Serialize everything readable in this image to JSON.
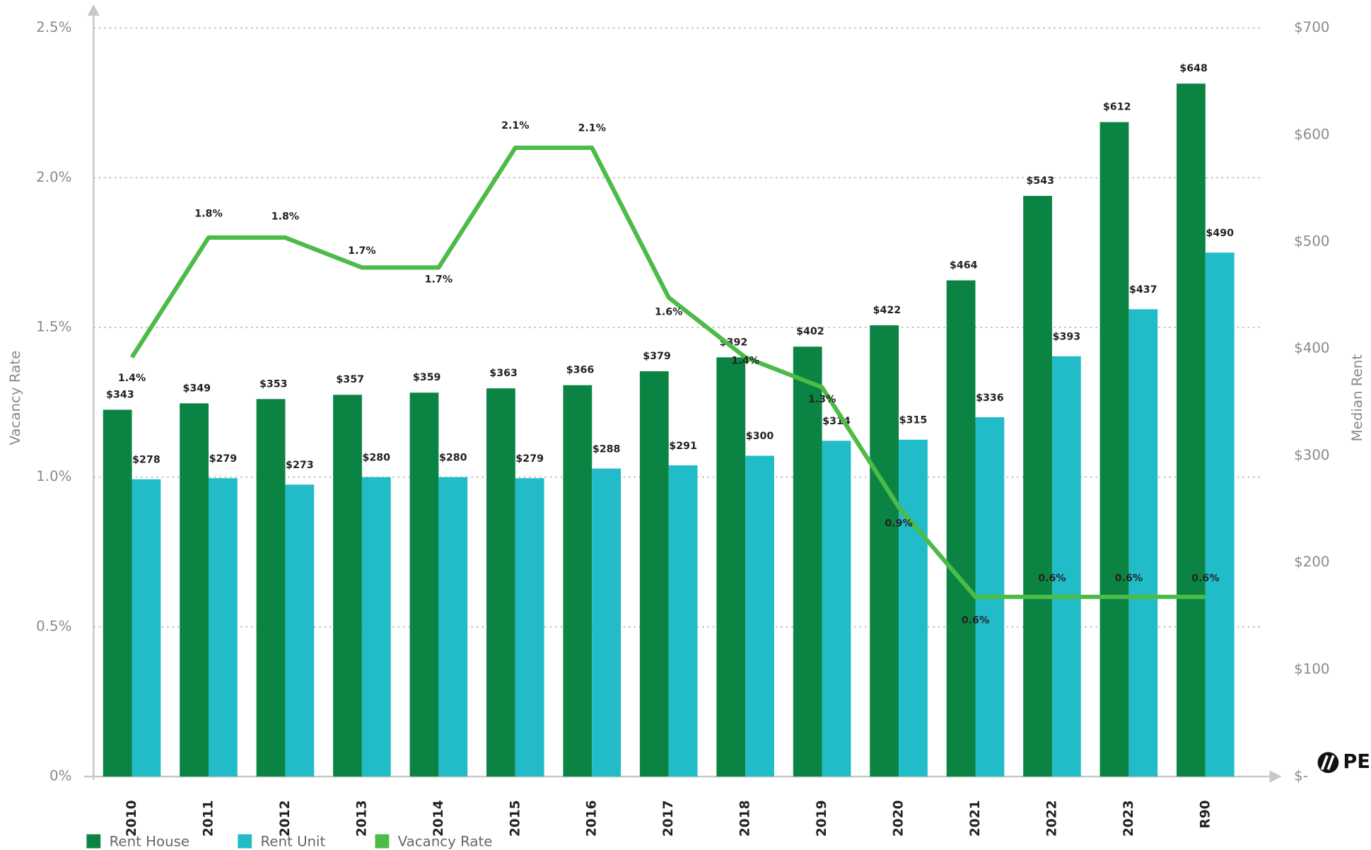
{
  "chart_data": {
    "type": "bar",
    "y_label": "Vacancy Rate",
    "y2_label": "Median Rent",
    "categories": [
      "2010",
      "2011",
      "2012",
      "2013",
      "2014",
      "2015",
      "2016",
      "2017",
      "2018",
      "2019",
      "2020",
      "2021",
      "2022",
      "2023",
      "R90"
    ],
    "series": [
      {
        "name": "Rent House",
        "type": "bar",
        "axis": "y2",
        "color": "#0b8443",
        "values": [
          343,
          349,
          353,
          357,
          359,
          363,
          366,
          379,
          392,
          402,
          422,
          464,
          543,
          612,
          648
        ],
        "value_labels": [
          "$343",
          "$349",
          "$353",
          "$357",
          "$359",
          "$363",
          "$366",
          "$379",
          "$392",
          "$402",
          "$422",
          "$464",
          "$543",
          "$612",
          "$648"
        ]
      },
      {
        "name": "Rent Unit",
        "type": "bar",
        "axis": "y2",
        "color": "#22bcc8",
        "values": [
          278,
          279,
          273,
          280,
          280,
          279,
          288,
          291,
          300,
          314,
          315,
          336,
          393,
          437,
          490
        ],
        "value_labels": [
          "$278",
          "$279",
          "$273",
          "$280",
          "$280",
          "$279",
          "$288",
          "$291",
          "$300",
          "$314",
          "$315",
          "$336",
          "$393",
          "$437",
          "$490"
        ]
      },
      {
        "name": "Vacancy Rate",
        "type": "line",
        "color": "#4cbb47",
        "values": [
          1.4,
          1.8,
          1.8,
          1.7,
          1.7,
          2.1,
          2.1,
          1.6,
          1.4,
          1.3,
          0.9,
          0.6,
          0.6,
          0.6,
          0.6
        ],
        "value_labels": [
          "1.4%",
          "1.8%",
          "1.8%",
          "1.7%",
          "1.7%",
          "2.1%",
          "2.1%",
          "1.6%",
          "1.4%",
          "1.3%",
          "0.9%",
          "0.6%",
          "0.6%",
          "0.6%",
          "0.6%"
        ]
      }
    ],
    "ylim": [
      0,
      2.5
    ],
    "yticks": [
      {
        "value": 0,
        "label": "0%"
      },
      {
        "value": 0.5,
        "label": "0.5%"
      },
      {
        "value": 1,
        "label": "1.0%"
      },
      {
        "value": 1.5,
        "label": "1.5%"
      },
      {
        "value": 2,
        "label": "2.0%"
      },
      {
        "value": 2.5,
        "label": "2.5%"
      }
    ],
    "y2lim": [
      0,
      700
    ],
    "y2ticks": [
      {
        "value": 0,
        "label": "$-"
      },
      {
        "value": 100,
        "label": "$100"
      },
      {
        "value": 200,
        "label": "$200"
      },
      {
        "value": 300,
        "label": "$300"
      },
      {
        "value": 400,
        "label": "$400"
      },
      {
        "value": 500,
        "label": "$500"
      },
      {
        "value": 600,
        "label": "$600"
      },
      {
        "value": 700,
        "label": "$700"
      }
    ],
    "grid": true,
    "legend": "bottom"
  },
  "brand": "PE"
}
